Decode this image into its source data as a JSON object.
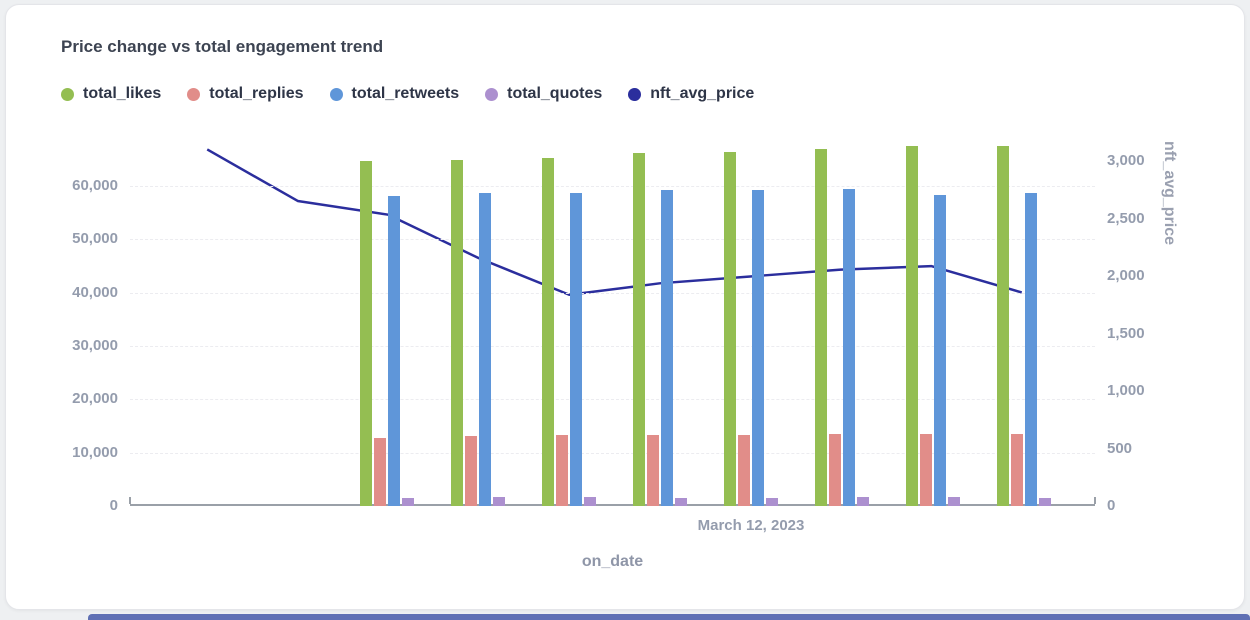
{
  "page": {
    "card_bg": "#ffffff",
    "page_bg": "#eef0f2",
    "bottom_strip_color": "#5f70b4"
  },
  "chart_data": {
    "type": "combo",
    "title": "Price change vs total engagement trend",
    "xlabel": "on_date",
    "x_visible_tick_label": "March 12, 2023",
    "x_visible_tick_index": 6,
    "num_points": 10,
    "grid": "dashed-horizontal",
    "legend_position": "top-left",
    "left_axis": {
      "ticks": [
        0,
        10000,
        20000,
        30000,
        40000,
        50000,
        60000
      ],
      "tick_labels": [
        "0",
        "10,000",
        "20,000",
        "30,000",
        "40,000",
        "50,000",
        "60,000"
      ],
      "max": 68400
    },
    "right_axis": {
      "label": "nft_avg_price",
      "ticks": [
        0,
        500,
        1000,
        1500,
        2000,
        2500,
        3000
      ],
      "tick_labels": [
        "0",
        "500",
        "1,000",
        "1,500",
        "2,000",
        "2,500",
        "3,000"
      ],
      "max": 3174
    },
    "series": [
      {
        "name": "total_likes",
        "type": "bar",
        "axis": "left",
        "color": "#94be52",
        "values": [
          null,
          null,
          64700,
          64900,
          65200,
          66100,
          66300,
          66900,
          67400,
          67500
        ]
      },
      {
        "name": "total_replies",
        "type": "bar",
        "axis": "left",
        "color": "#e18d89",
        "values": [
          null,
          null,
          12800,
          13200,
          13300,
          13300,
          13300,
          13500,
          13500,
          13500
        ]
      },
      {
        "name": "total_retweets",
        "type": "bar",
        "axis": "left",
        "color": "#5f96d9",
        "values": [
          null,
          null,
          58000,
          58600,
          58600,
          59200,
          59200,
          59400,
          58300,
          58600
        ]
      },
      {
        "name": "total_quotes",
        "type": "bar",
        "axis": "left",
        "color": "#ac90cf",
        "values": [
          null,
          null,
          1500,
          1600,
          1600,
          1550,
          1550,
          1600,
          1600,
          1500
        ]
      },
      {
        "name": "nft_avg_price",
        "type": "line",
        "axis": "right",
        "color": "#2b2e9d",
        "values": [
          3100,
          2650,
          2530,
          2150,
          1830,
          1930,
          1990,
          2050,
          2080,
          1850
        ]
      }
    ]
  }
}
